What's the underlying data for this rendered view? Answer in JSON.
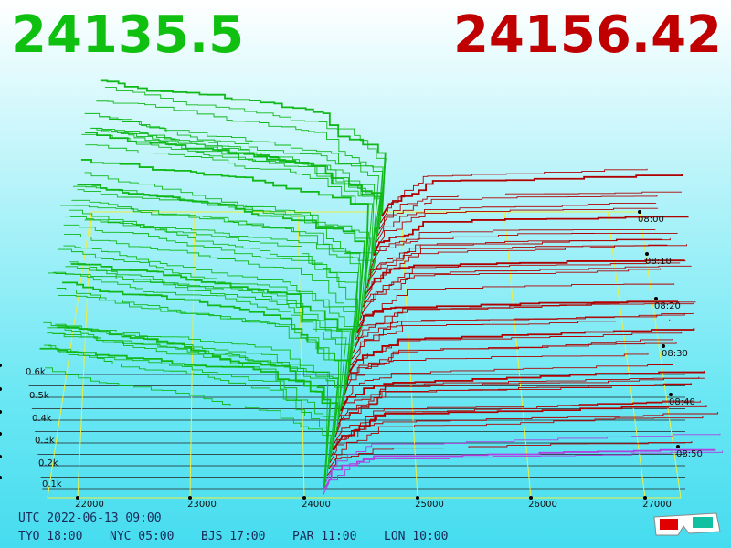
{
  "bid_price": "24135.5",
  "ask_price": "24156.42",
  "price_ticks": [
    "22000",
    "23000",
    "24000",
    "25000",
    "26000",
    "27000"
  ],
  "time_ticks": [
    "08:00",
    "08:10",
    "08:20",
    "08:30",
    "08:40",
    "08:50"
  ],
  "depth_ticks": [
    "0.6k",
    "0.5k",
    "0.4k",
    "0.3k",
    "0.2k",
    "0.1k"
  ],
  "footer": {
    "utc": "UTC 2022-06-13 09:00",
    "zones": [
      "TYO 18:00",
      "NYC 05:00",
      "BJS 17:00",
      "PAR 11:00",
      "LON 10:00"
    ]
  }
}
